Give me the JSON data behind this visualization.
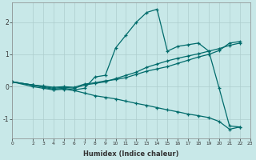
{
  "xlabel": "Humidex (Indice chaleur)",
  "background_color": "#c8e8e8",
  "grid_color": "#aecece",
  "line_color": "#006b6b",
  "xlim": [
    0,
    23
  ],
  "ylim": [
    -1.6,
    2.6
  ],
  "xticks": [
    0,
    2,
    3,
    4,
    5,
    6,
    7,
    8,
    9,
    10,
    11,
    12,
    13,
    14,
    15,
    16,
    17,
    18,
    19,
    20,
    21,
    22,
    23
  ],
  "yticks": [
    -1,
    0,
    1,
    2
  ],
  "series": [
    {
      "x": [
        0,
        2,
        3,
        4,
        5,
        6,
        7,
        8,
        9,
        10,
        11,
        12,
        13,
        14,
        15,
        16,
        17,
        18,
        19,
        20,
        21,
        22
      ],
      "y": [
        0.15,
        0.05,
        -0.02,
        -0.08,
        -0.05,
        -0.1,
        -0.05,
        0.3,
        0.35,
        1.2,
        1.6,
        2.0,
        2.3,
        2.4,
        1.1,
        1.25,
        1.3,
        1.35,
        1.1,
        -0.05,
        -1.22,
        -1.25
      ]
    },
    {
      "x": [
        0,
        2,
        3,
        4,
        5,
        6,
        7,
        8,
        9,
        10,
        11,
        12,
        13,
        14,
        15,
        16,
        17,
        18,
        19,
        20,
        21,
        22
      ],
      "y": [
        0.15,
        0.05,
        0.0,
        -0.05,
        -0.02,
        -0.05,
        0.05,
        0.1,
        0.15,
        0.25,
        0.35,
        0.45,
        0.6,
        0.7,
        0.8,
        0.88,
        0.95,
        1.02,
        1.1,
        1.18,
        1.28,
        1.35
      ]
    },
    {
      "x": [
        0,
        2,
        3,
        4,
        5,
        6,
        7,
        8,
        9,
        10,
        11,
        12,
        13,
        14,
        15,
        16,
        17,
        18,
        19,
        20,
        21,
        22
      ],
      "y": [
        0.15,
        0.05,
        0.02,
        -0.02,
        0.0,
        -0.02,
        0.08,
        0.12,
        0.18,
        0.22,
        0.28,
        0.38,
        0.48,
        0.55,
        0.62,
        0.72,
        0.82,
        0.92,
        1.0,
        1.12,
        1.35,
        1.4
      ]
    },
    {
      "x": [
        0,
        2,
        3,
        4,
        5,
        6,
        7,
        8,
        9,
        10,
        11,
        12,
        13,
        14,
        15,
        16,
        17,
        18,
        19,
        20,
        21,
        22
      ],
      "y": [
        0.15,
        0.0,
        -0.05,
        -0.1,
        -0.08,
        -0.12,
        -0.2,
        -0.28,
        -0.33,
        -0.38,
        -0.45,
        -0.52,
        -0.58,
        -0.65,
        -0.72,
        -0.78,
        -0.85,
        -0.9,
        -0.96,
        -1.08,
        -1.32,
        -1.25
      ]
    }
  ]
}
